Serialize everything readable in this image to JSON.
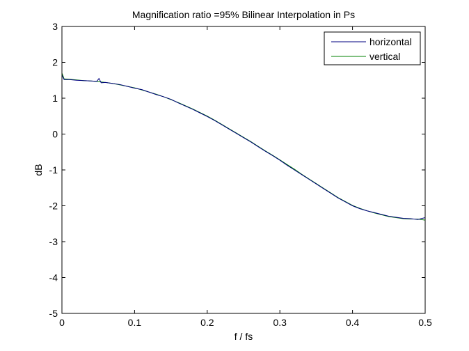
{
  "chart_data": {
    "type": "line",
    "title": "Magnification ratio =95% Bilinear Interpolation in Ps",
    "xlabel": "f / fs",
    "ylabel": "dB",
    "xlim": [
      0,
      0.5
    ],
    "ylim": [
      -5,
      3
    ],
    "x_ticks": [
      0,
      0.1,
      0.2,
      0.3,
      0.4,
      0.5
    ],
    "x_tick_labels": [
      "0",
      "0.1",
      "0.2",
      "0.3",
      "0.4",
      "0.5"
    ],
    "y_ticks": [
      3,
      2,
      1,
      0,
      -1,
      -2,
      -3,
      -4,
      -5
    ],
    "y_tick_labels": [
      "3",
      "2",
      "1",
      "0",
      "-1",
      "-2",
      "-3",
      "-4",
      "-5"
    ],
    "grid": false,
    "legend_position": "top-right",
    "series": [
      {
        "name": "horizontal",
        "color": "#000080",
        "x": [
          0,
          0.003,
          0.01,
          0.02,
          0.03,
          0.04,
          0.048,
          0.051,
          0.054,
          0.06,
          0.07,
          0.08,
          0.09,
          0.1,
          0.11,
          0.12,
          0.13,
          0.14,
          0.15,
          0.16,
          0.17,
          0.18,
          0.19,
          0.2,
          0.21,
          0.22,
          0.23,
          0.24,
          0.25,
          0.26,
          0.27,
          0.28,
          0.29,
          0.3,
          0.31,
          0.32,
          0.33,
          0.34,
          0.35,
          0.36,
          0.37,
          0.38,
          0.39,
          0.4,
          0.41,
          0.42,
          0.43,
          0.44,
          0.45,
          0.46,
          0.47,
          0.48,
          0.49,
          0.5
        ],
        "y": [
          1.65,
          1.52,
          1.52,
          1.5,
          1.49,
          1.48,
          1.47,
          1.55,
          1.43,
          1.44,
          1.41,
          1.38,
          1.33,
          1.28,
          1.24,
          1.17,
          1.1,
          1.04,
          0.97,
          0.87,
          0.78,
          0.69,
          0.59,
          0.49,
          0.38,
          0.26,
          0.14,
          0.02,
          -0.1,
          -0.22,
          -0.35,
          -0.48,
          -0.6,
          -0.73,
          -0.87,
          -1.0,
          -1.13,
          -1.26,
          -1.39,
          -1.52,
          -1.65,
          -1.78,
          -1.89,
          -2.0,
          -2.08,
          -2.14,
          -2.19,
          -2.24,
          -2.29,
          -2.32,
          -2.35,
          -2.36,
          -2.38,
          -2.33
        ]
      },
      {
        "name": "vertical",
        "color": "#008000",
        "x": [
          0,
          0.003,
          0.01,
          0.02,
          0.03,
          0.04,
          0.05,
          0.06,
          0.07,
          0.08,
          0.09,
          0.1,
          0.11,
          0.12,
          0.13,
          0.14,
          0.15,
          0.16,
          0.17,
          0.18,
          0.19,
          0.2,
          0.21,
          0.22,
          0.23,
          0.24,
          0.25,
          0.26,
          0.27,
          0.28,
          0.29,
          0.3,
          0.31,
          0.32,
          0.33,
          0.34,
          0.35,
          0.36,
          0.37,
          0.38,
          0.39,
          0.4,
          0.41,
          0.42,
          0.43,
          0.44,
          0.45,
          0.46,
          0.47,
          0.48,
          0.49,
          0.5
        ],
        "y": [
          1.7,
          1.54,
          1.53,
          1.51,
          1.49,
          1.48,
          1.46,
          1.44,
          1.41,
          1.37,
          1.33,
          1.29,
          1.23,
          1.17,
          1.11,
          1.04,
          0.96,
          0.88,
          0.79,
          0.7,
          0.6,
          0.5,
          0.39,
          0.27,
          0.15,
          0.03,
          -0.09,
          -0.21,
          -0.34,
          -0.47,
          -0.59,
          -0.72,
          -0.85,
          -0.98,
          -1.12,
          -1.25,
          -1.38,
          -1.51,
          -1.64,
          -1.77,
          -1.88,
          -1.99,
          -2.07,
          -2.14,
          -2.2,
          -2.25,
          -2.3,
          -2.33,
          -2.36,
          -2.37,
          -2.37,
          -2.4
        ]
      }
    ]
  }
}
